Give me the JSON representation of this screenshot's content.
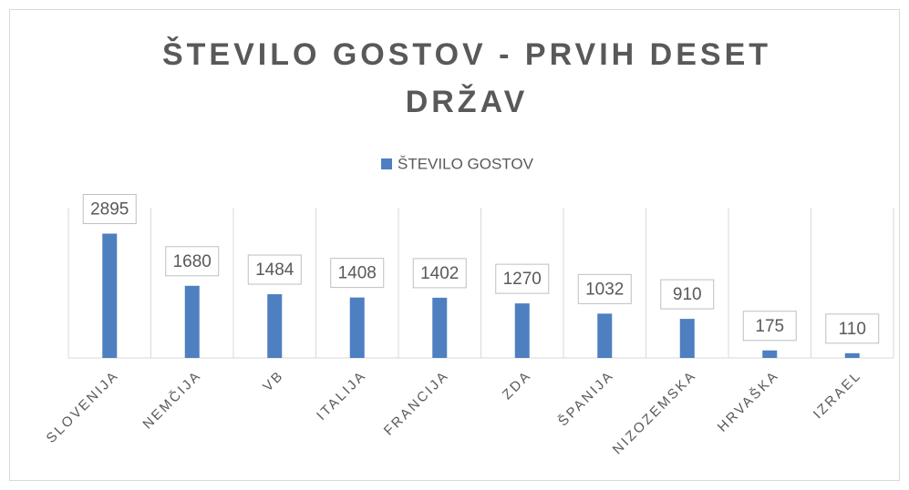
{
  "chart_data": {
    "type": "bar",
    "title": "ŠTEVILO GOSTOV - PRVIH DESET DRŽAV",
    "legend": "ŠTEVILO GOSTOV",
    "color": "#4e7fc0",
    "categories": [
      "SLOVENIJA",
      "NEMČIJA",
      "VB",
      "ITALIJA",
      "FRANCIJA",
      "ZDA",
      "ŠPANIJA",
      "NIZOZEMSKA",
      "HRVAŠKA",
      "IZRAEL"
    ],
    "values": [
      2895,
      1680,
      1484,
      1408,
      1402,
      1270,
      1032,
      910,
      175,
      110
    ],
    "ylim": [
      0,
      3500
    ]
  }
}
